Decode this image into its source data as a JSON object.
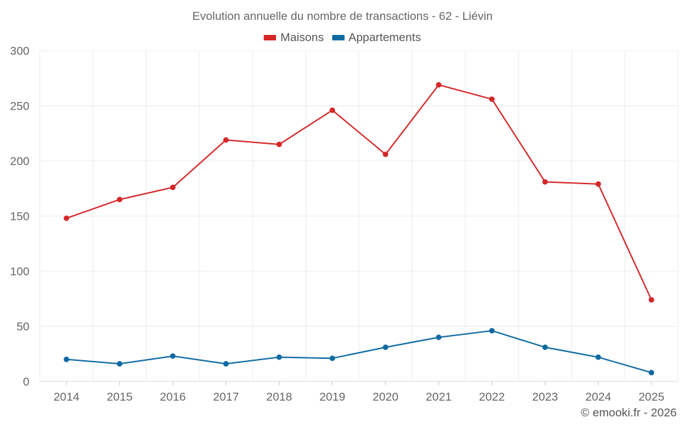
{
  "chart_data": {
    "type": "line",
    "title": "Evolution annuelle du nombre de transactions - 62 - Liévin",
    "xlabel": "",
    "ylabel": "",
    "categories": [
      "2014",
      "2015",
      "2016",
      "2017",
      "2018",
      "2019",
      "2020",
      "2021",
      "2022",
      "2023",
      "2024",
      "2025"
    ],
    "ylim": [
      0,
      300
    ],
    "yticks": [
      0,
      50,
      100,
      150,
      200,
      250,
      300
    ],
    "grid": true,
    "legend_position": "top-center",
    "series": [
      {
        "name": "Maisons",
        "color": "#d62728",
        "values": [
          148,
          165,
          176,
          219,
          215,
          246,
          206,
          269,
          256,
          181,
          179,
          74
        ]
      },
      {
        "name": "Appartements",
        "color": "#0e6aa3",
        "values": [
          20,
          16,
          23,
          16,
          22,
          21,
          31,
          40,
          46,
          31,
          22,
          8
        ]
      }
    ]
  },
  "footer": {
    "copyright": "© emooki.fr - 2026"
  }
}
